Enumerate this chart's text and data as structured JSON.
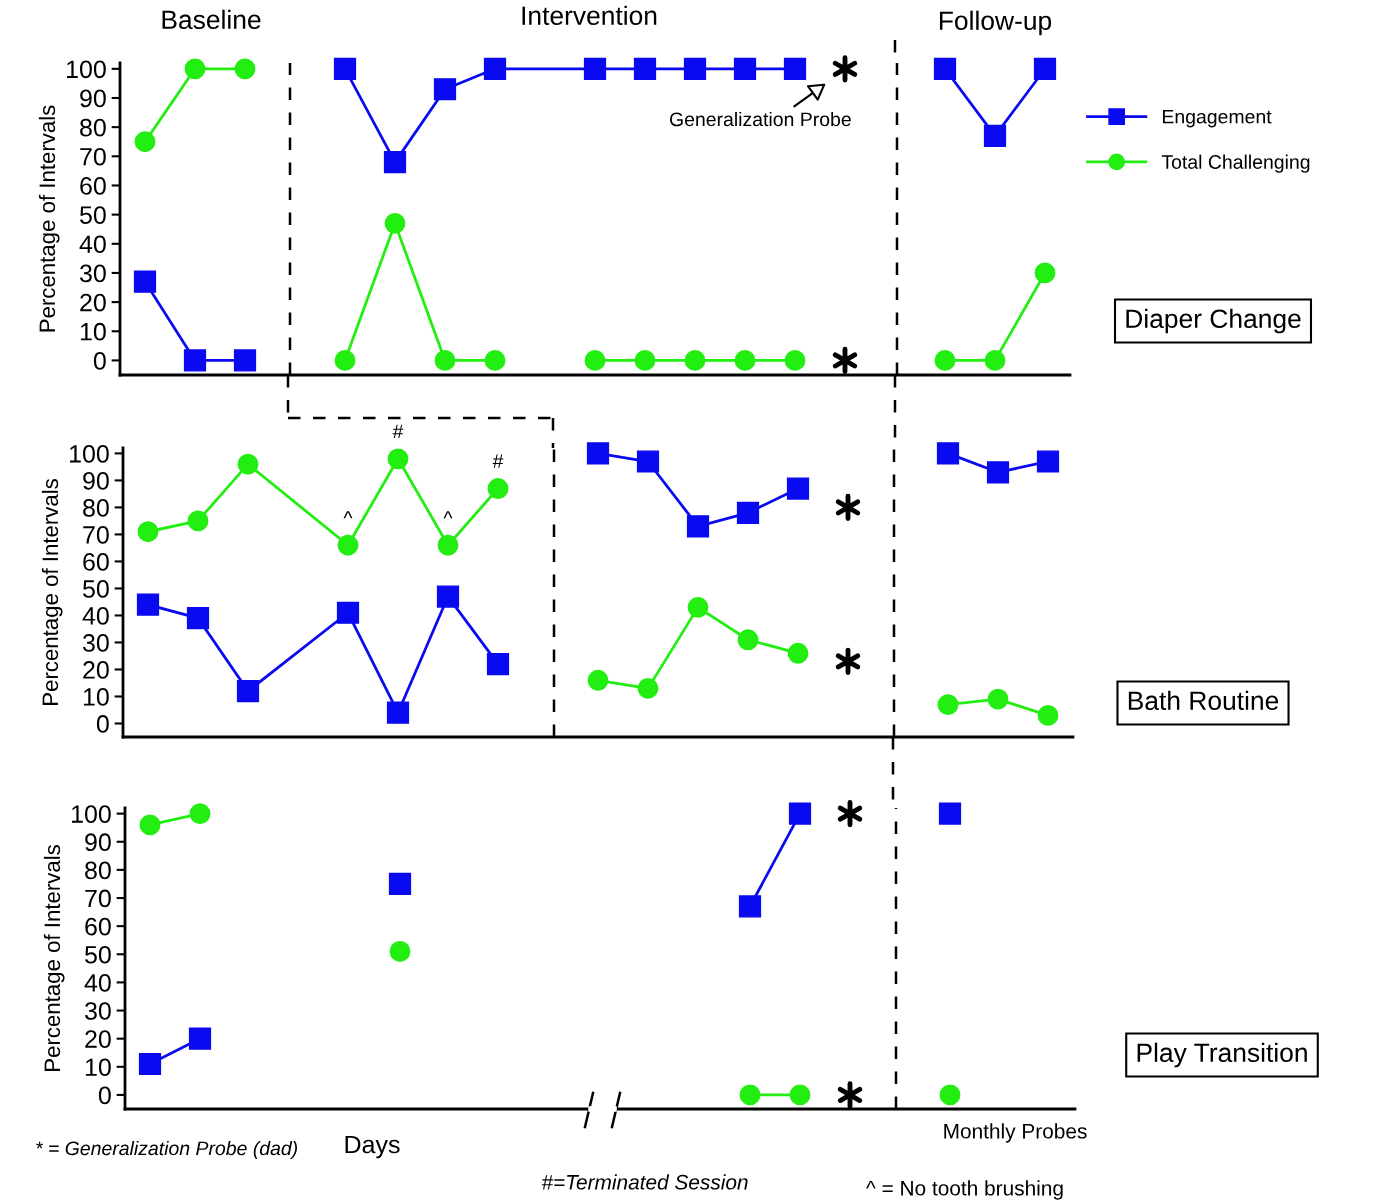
{
  "chart_data": [
    {
      "type": "line",
      "ylabel": "Percentage of Intervals",
      "legend": "right",
      "grid": false,
      "line_style": "solid",
      "categories": [
        null,
        null,
        null,
        null,
        null,
        null,
        null,
        null,
        null,
        null,
        null,
        null,
        null,
        null,
        null,
        null,
        null,
        null,
        null
      ],
      "ylim": [
        -5,
        102
      ],
      "yticks": [
        0,
        10,
        20,
        30,
        40,
        50,
        60,
        70,
        80,
        90,
        100
      ],
      "annotations": [
        "Baseline",
        "Intervention",
        "Follow-up",
        "Generalization Probe",
        "Diaper Change"
      ],
      "series": [
        {
          "name": "Engagement",
          "color": "#0a0af0",
          "marker": "square",
          "values": [
            27,
            0,
            0,
            null,
            null,
            null,
            null,
            null,
            null,
            null,
            null,
            null,
            null,
            null,
            null,
            null,
            null,
            null,
            null
          ]
        },
        {
          "color": "#0a0af0",
          "marker": "square",
          "values": [
            null,
            null,
            null,
            null,
            100,
            68,
            93,
            100,
            null,
            100,
            100,
            100,
            100,
            100,
            null,
            null,
            null,
            null,
            null
          ]
        },
        {
          "color": "#0a0af0",
          "marker": "square",
          "values": [
            null,
            null,
            null,
            null,
            null,
            null,
            null,
            null,
            null,
            null,
            null,
            null,
            null,
            null,
            null,
            null,
            100,
            77,
            100
          ]
        },
        {
          "name": "Total Challenging",
          "color": "#22ee11",
          "marker": "circle",
          "values": [
            75,
            100,
            100,
            null,
            null,
            null,
            null,
            null,
            null,
            null,
            null,
            null,
            null,
            null,
            null,
            null,
            null,
            null,
            null
          ]
        },
        {
          "color": "#22ee11",
          "marker": "circle",
          "values": [
            null,
            null,
            null,
            null,
            0,
            47,
            0,
            0,
            null,
            null,
            null,
            null,
            null,
            null,
            null,
            null,
            null,
            null,
            null
          ]
        },
        {
          "color": "#22ee11",
          "marker": "circle",
          "values": [
            null,
            null,
            null,
            null,
            null,
            null,
            null,
            null,
            null,
            0,
            0,
            0,
            0,
            0,
            null,
            null,
            null,
            null,
            null
          ]
        },
        {
          "color": "#22ee11",
          "marker": "circle",
          "values": [
            null,
            null,
            null,
            null,
            null,
            null,
            null,
            null,
            null,
            null,
            null,
            null,
            null,
            null,
            null,
            null,
            0,
            0,
            30
          ]
        },
        {
          "type": "scatter",
          "color": "#000000",
          "marker": "cross",
          "values": [
            null,
            null,
            null,
            null,
            null,
            null,
            null,
            null,
            null,
            null,
            null,
            null,
            null,
            null,
            100,
            null,
            null,
            null,
            null
          ]
        },
        {
          "type": "scatter",
          "color": "#000000",
          "marker": "cross",
          "values": [
            null,
            null,
            null,
            null,
            null,
            null,
            null,
            null,
            null,
            null,
            null,
            null,
            null,
            null,
            0,
            null,
            null,
            null,
            null
          ]
        }
      ]
    },
    {
      "type": "line",
      "ylabel": "Percentage of Intervals",
      "annotations": [
        "Bath Routine"
      ],
      "grid": false,
      "line_style": "solid",
      "categories": [
        null,
        null,
        null,
        null,
        null,
        null,
        null,
        null,
        null,
        null,
        null,
        null,
        null,
        null,
        null,
        null,
        null,
        null,
        null
      ],
      "ylim": [
        -5,
        102
      ],
      "yticks": [
        0,
        10,
        20,
        30,
        40,
        50,
        60,
        70,
        80,
        90,
        100
      ],
      "series": [
        {
          "color": "#0a0af0",
          "marker": "square",
          "values": [
            44,
            39,
            12,
            null,
            41,
            4,
            47,
            22,
            null,
            null,
            null,
            null,
            null,
            null,
            null,
            null,
            null,
            null,
            null
          ]
        },
        {
          "color": "#22ee11",
          "marker": "circle",
          "values": [
            71,
            75,
            96,
            null,
            66,
            98,
            66,
            87,
            null,
            null,
            null,
            null,
            null,
            null,
            null,
            null,
            null,
            null,
            null
          ],
          "value_labels": [
            null,
            null,
            null,
            null,
            "^",
            "#",
            "^",
            "#",
            null,
            null,
            null,
            null,
            null,
            null,
            null,
            null,
            null,
            null,
            null
          ]
        },
        {
          "color": "#0a0af0",
          "marker": "square",
          "values": [
            null,
            null,
            null,
            null,
            null,
            null,
            null,
            null,
            null,
            100,
            97,
            73,
            78,
            87,
            null,
            null,
            null,
            null,
            null
          ]
        },
        {
          "color": "#22ee11",
          "marker": "circle",
          "values": [
            null,
            null,
            null,
            null,
            null,
            null,
            null,
            null,
            null,
            16,
            13,
            43,
            31,
            26,
            null,
            null,
            null,
            null,
            null
          ]
        },
        {
          "color": "#0a0af0",
          "marker": "square",
          "values": [
            null,
            null,
            null,
            null,
            null,
            null,
            null,
            null,
            null,
            null,
            null,
            null,
            null,
            null,
            null,
            null,
            100,
            93,
            97
          ]
        },
        {
          "color": "#22ee11",
          "marker": "circle",
          "values": [
            null,
            null,
            null,
            null,
            null,
            null,
            null,
            null,
            null,
            null,
            null,
            null,
            null,
            null,
            null,
            null,
            7,
            9,
            3
          ]
        },
        {
          "type": "scatter",
          "color": "#000000",
          "marker": "cross",
          "values": [
            null,
            null,
            null,
            null,
            null,
            null,
            null,
            null,
            null,
            null,
            null,
            null,
            null,
            null,
            80,
            null,
            null,
            null,
            null
          ]
        },
        {
          "type": "scatter",
          "color": "#000000",
          "marker": "cross",
          "values": [
            null,
            null,
            null,
            null,
            null,
            null,
            null,
            null,
            null,
            null,
            null,
            null,
            null,
            null,
            23,
            null,
            null,
            null,
            null
          ]
        }
      ]
    },
    {
      "type": "line",
      "ylabel": "Percentage of Intervals",
      "xlabel": "Days",
      "grid": false,
      "line_style": "solid",
      "categories": [
        null,
        null,
        null,
        null,
        null,
        null,
        null,
        null,
        null,
        null,
        null,
        null,
        null,
        null,
        null,
        null,
        null,
        null,
        null
      ],
      "ylim": [
        -5,
        102
      ],
      "yticks": [
        0,
        10,
        20,
        30,
        40,
        50,
        60,
        70,
        80,
        90,
        100
      ],
      "annotations": [
        "Monthly Probes",
        "* = Generalization Probe (dad)",
        "#=Terminated Session",
        "^ = No tooth brushing",
        "Play Transition"
      ],
      "series": [
        {
          "color": "#0a0af0",
          "marker": "square",
          "values": [
            11,
            20,
            null,
            null,
            null,
            null,
            null,
            null,
            null,
            null,
            null,
            null,
            null,
            null,
            null,
            null,
            null,
            null,
            null
          ]
        },
        {
          "color": "#22ee11",
          "marker": "circle",
          "values": [
            96,
            100,
            null,
            null,
            null,
            null,
            null,
            null,
            null,
            null,
            null,
            null,
            null,
            null,
            null,
            null,
            null,
            null,
            null
          ]
        },
        {
          "color": "#0a0af0",
          "marker": "square",
          "values": [
            null,
            null,
            null,
            null,
            null,
            75,
            null,
            null,
            null,
            null,
            null,
            null,
            null,
            null,
            null,
            null,
            null,
            null,
            null
          ]
        },
        {
          "color": "#22ee11",
          "marker": "circle",
          "values": [
            null,
            null,
            null,
            null,
            null,
            51,
            null,
            null,
            null,
            null,
            null,
            null,
            null,
            null,
            null,
            null,
            null,
            null,
            null
          ]
        },
        {
          "color": "#0a0af0",
          "marker": "square",
          "values": [
            null,
            null,
            null,
            null,
            null,
            null,
            null,
            null,
            null,
            null,
            null,
            null,
            67,
            100,
            null,
            null,
            null,
            null,
            null
          ]
        },
        {
          "color": "#22ee11",
          "marker": "circle",
          "values": [
            null,
            null,
            null,
            null,
            null,
            null,
            null,
            null,
            null,
            null,
            null,
            null,
            0,
            0,
            null,
            null,
            null,
            null,
            null
          ]
        },
        {
          "color": "#0a0af0",
          "marker": "square",
          "values": [
            null,
            null,
            null,
            null,
            null,
            null,
            null,
            null,
            null,
            null,
            null,
            null,
            null,
            null,
            null,
            null,
            100,
            null,
            null
          ]
        },
        {
          "color": "#22ee11",
          "marker": "circle",
          "values": [
            null,
            null,
            null,
            null,
            null,
            null,
            null,
            null,
            null,
            null,
            null,
            null,
            null,
            null,
            null,
            null,
            0,
            null,
            null
          ]
        },
        {
          "type": "scatter",
          "color": "#000000",
          "marker": "cross",
          "values": [
            null,
            null,
            null,
            null,
            null,
            null,
            null,
            null,
            null,
            null,
            null,
            null,
            null,
            null,
            100,
            null,
            null,
            null,
            null
          ]
        },
        {
          "type": "scatter",
          "color": "#000000",
          "marker": "cross",
          "values": [
            null,
            null,
            null,
            null,
            null,
            null,
            null,
            null,
            null,
            null,
            null,
            null,
            null,
            null,
            0,
            null,
            null,
            null,
            null
          ]
        }
      ]
    }
  ]
}
